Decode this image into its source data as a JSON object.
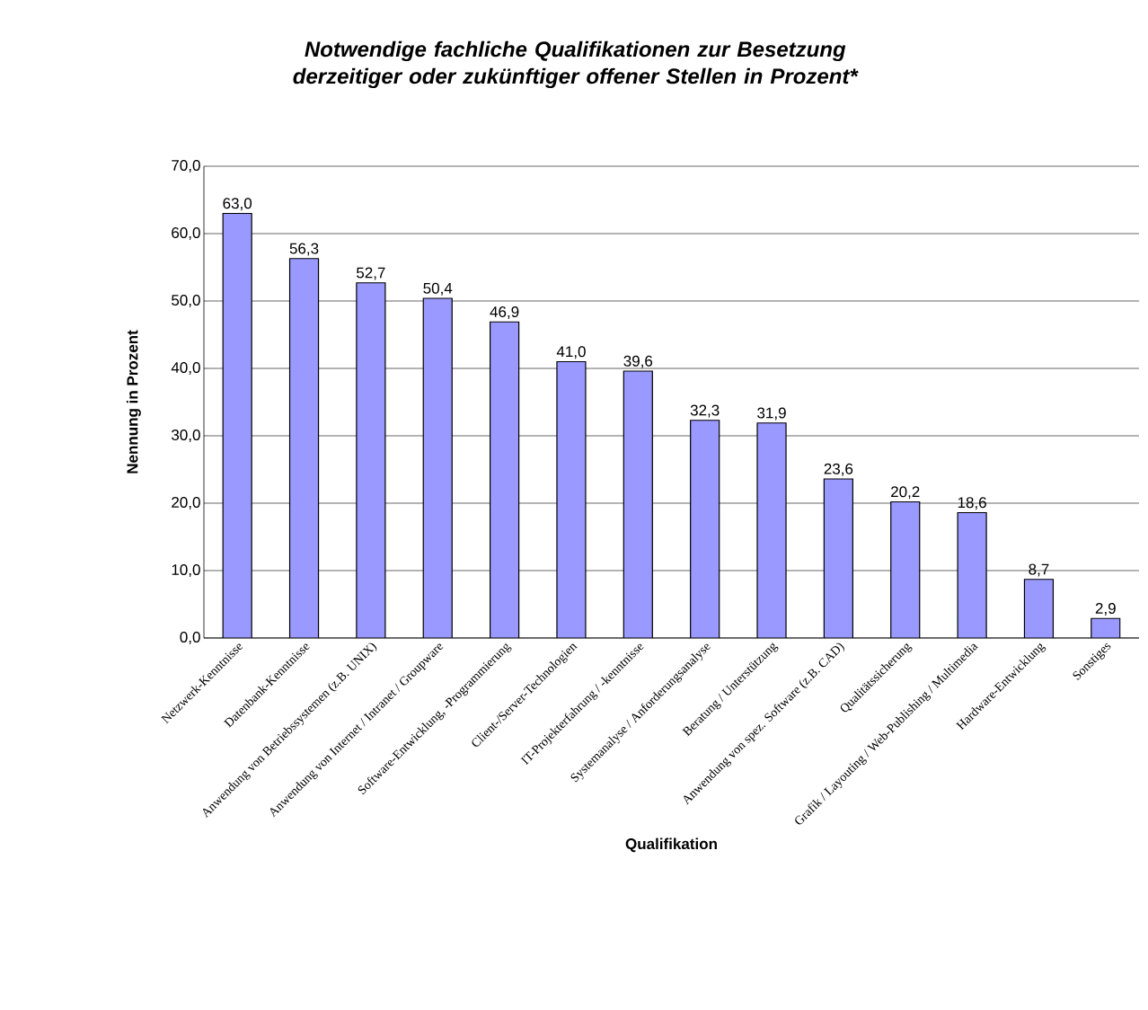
{
  "chart_data": {
    "type": "bar",
    "title": "Notwendige fachliche Qualifikationen zur Besetzung derzeitiger oder zukünftiger offener Stellen in Prozent*",
    "xlabel": "Qualifikation",
    "ylabel": "Nennung in Prozent",
    "categories": [
      "Netzwerk-Kenntnisse",
      "Datenbank-Kenntnisse",
      "Anwendung von Betriebssystemen (z.B. UNIX)",
      "Anwendung von Internet / Intranet / Groupware",
      "Software-Entwicklung, -Programmierung",
      "Client-/Server-Technologien",
      "IT-Projekterfahrung / -kenntnisse",
      "Systemanalyse / Anforderungsanalyse",
      "Beratung / Unterstützung",
      "Anwendung von spez. Software (z.B. CAD)",
      "Qualitätssicherung",
      "Grafik / Layouting / Web-Publishing / Multimedia",
      "Hardware-Entwicklung",
      "Sonstiges"
    ],
    "values": [
      63.0,
      56.3,
      52.7,
      50.4,
      46.9,
      41.0,
      39.6,
      32.3,
      31.9,
      23.6,
      20.2,
      18.6,
      8.7,
      2.9
    ],
    "value_labels": [
      "63,0",
      "56,3",
      "52,7",
      "50,4",
      "46,9",
      "41,0",
      "39,6",
      "32,3",
      "31,9",
      "23,6",
      "20,2",
      "18,6",
      "8,7",
      "2,9"
    ],
    "color": "#9999ff",
    "ylim": [
      0,
      70
    ],
    "yticks": [
      {
        "value": 0,
        "label": "0,0"
      },
      {
        "value": 10,
        "label": "10,0"
      },
      {
        "value": 20,
        "label": "20,0"
      },
      {
        "value": 30,
        "label": "30,0"
      },
      {
        "value": 40,
        "label": "40,0"
      },
      {
        "value": 50,
        "label": "50,0"
      },
      {
        "value": 60,
        "label": "60,0"
      },
      {
        "value": 70,
        "label": "70,0"
      }
    ],
    "grid": "y"
  }
}
